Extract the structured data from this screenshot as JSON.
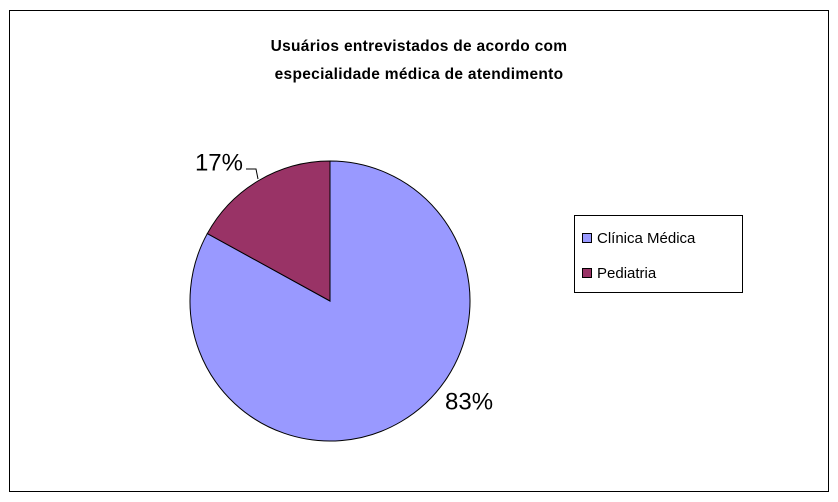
{
  "chart_data": {
    "type": "pie",
    "title": "Usuários entrevistados de acordo com especialidade médica de atendimento",
    "categories": [
      "Clínica Médica",
      "Pediatria"
    ],
    "values": [
      83,
      17
    ],
    "value_labels": [
      "83%",
      "17%"
    ],
    "colors": [
      "#9999ff",
      "#993366"
    ],
    "legend": "right"
  }
}
